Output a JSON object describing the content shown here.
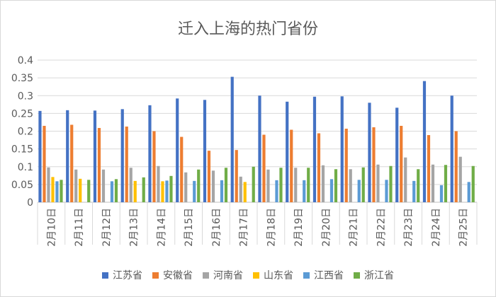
{
  "chart_data": {
    "type": "bar",
    "title": "迁入上海的热门省份",
    "xlabel": "",
    "ylabel": "",
    "ylim": [
      0,
      0.4
    ],
    "yticks": [
      "0",
      "0.05",
      "0.1",
      "0.15",
      "0.2",
      "0.25",
      "0.3",
      "0.35",
      "0.4"
    ],
    "grid": true,
    "legend_position": "bottom",
    "categories": [
      "2月10日",
      "2月11日",
      "2月12日",
      "2月13日",
      "2月14日",
      "2月15日",
      "2月16日",
      "2月17日",
      "2月18日",
      "2月19日",
      "2月20日",
      "2月21日",
      "2月22日",
      "2月23日",
      "2月24日",
      "2月25日"
    ],
    "series": [
      {
        "name": "江苏省",
        "color": "#4472c4",
        "values": [
          0.257,
          0.259,
          0.258,
          0.262,
          0.273,
          0.292,
          0.288,
          0.353,
          0.3,
          0.283,
          0.297,
          0.298,
          0.28,
          0.266,
          0.341,
          0.3
        ]
      },
      {
        "name": "安徽省",
        "color": "#ed7d31",
        "values": [
          0.215,
          0.218,
          0.209,
          0.213,
          0.2,
          0.184,
          0.145,
          0.147,
          0.19,
          0.204,
          0.194,
          0.207,
          0.211,
          0.215,
          0.189,
          0.2
        ]
      },
      {
        "name": "河南省",
        "color": "#a5a5a5",
        "values": [
          0.098,
          0.092,
          0.092,
          0.097,
          0.102,
          0.084,
          0.089,
          0.072,
          0.092,
          0.097,
          0.104,
          0.093,
          0.106,
          0.126,
          0.106,
          0.128
        ]
      },
      {
        "name": "山东省",
        "color": "#ffc000",
        "values": [
          0.071,
          0.066,
          0,
          0.06,
          0.059,
          0,
          0,
          0.057,
          0,
          0,
          0,
          0,
          0,
          0,
          0,
          0
        ]
      },
      {
        "name": "江西省",
        "color": "#5b9bd5",
        "values": [
          0.059,
          0,
          0.059,
          0,
          0.061,
          0.06,
          0.062,
          0,
          0.062,
          0.062,
          0.065,
          0.063,
          0.063,
          0.06,
          0.048,
          0.057
        ]
      },
      {
        "name": "浙江省",
        "color": "#70ad47",
        "values": [
          0.063,
          0.063,
          0.065,
          0.07,
          0.074,
          0.092,
          0.097,
          0.1,
          0.097,
          0.097,
          0.093,
          0.098,
          0.102,
          0.093,
          0.105,
          0.102
        ]
      }
    ]
  }
}
